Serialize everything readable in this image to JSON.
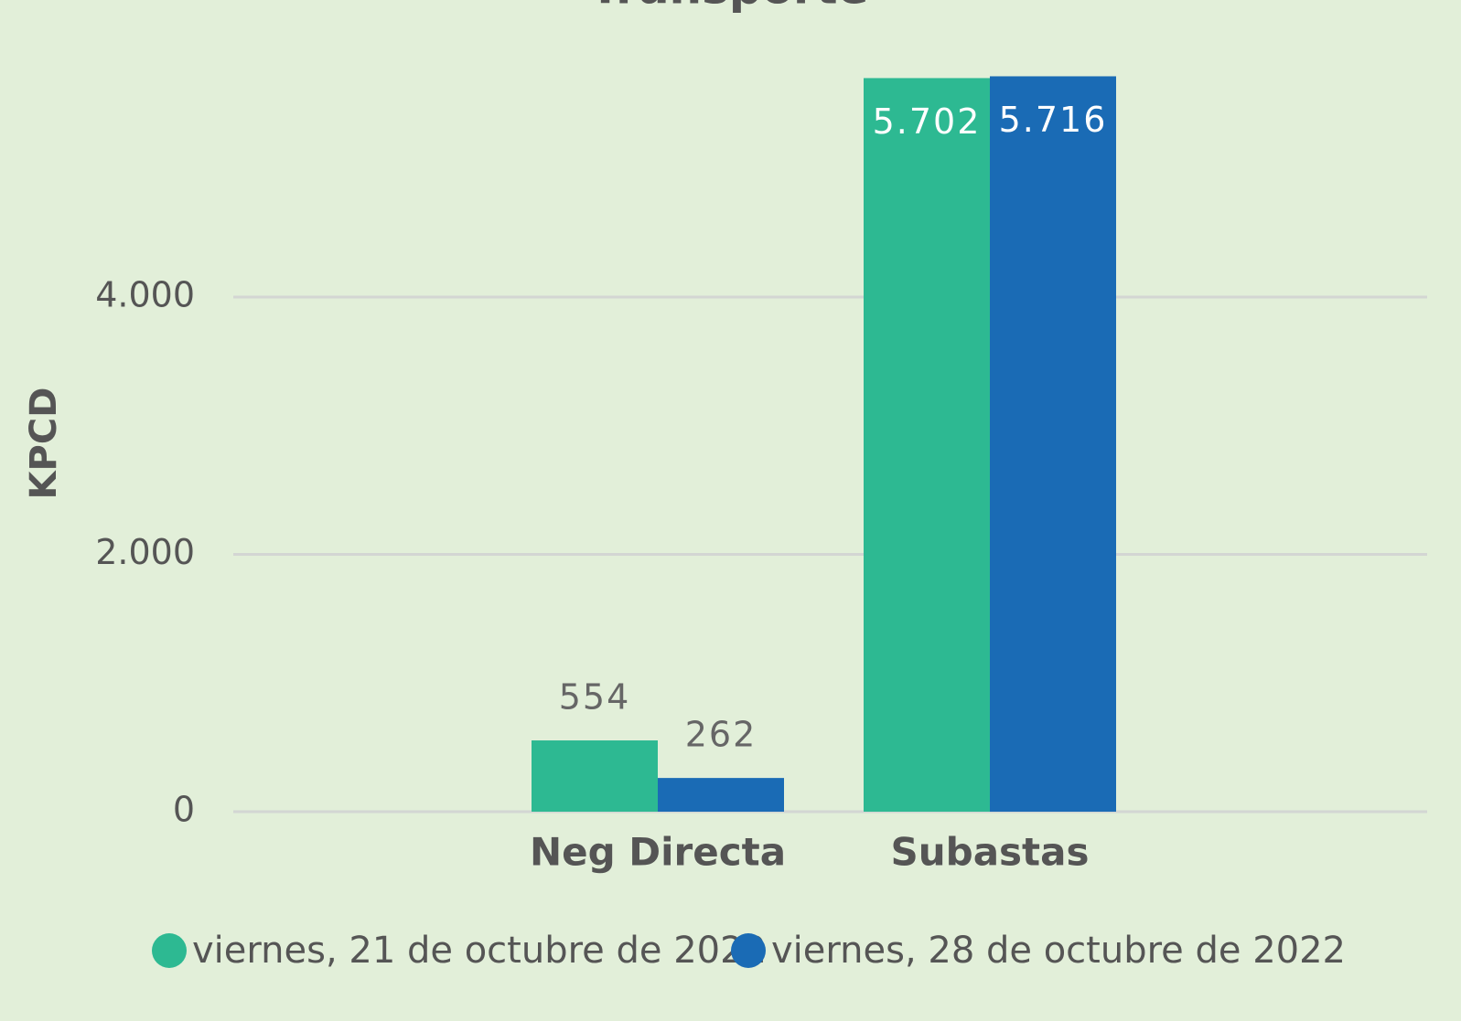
{
  "chart_data": {
    "type": "bar",
    "title": "Transporte",
    "y_label": "KPCD",
    "categories": [
      "Neg Directa",
      "Subastas"
    ],
    "series": [
      {
        "name": "viernes, 21 de octubre de 2022",
        "color": "#2db992",
        "values": [
          554,
          5702
        ],
        "value_labels": [
          "554",
          "5.702"
        ]
      },
      {
        "name": "viernes, 28 de octubre de 2022",
        "color": "#1a6bb5",
        "values": [
          262,
          5716
        ],
        "value_labels": [
          "262",
          "5.716"
        ]
      }
    ],
    "ylim": [
      0,
      6000
    ],
    "yticks": [
      0,
      {
        "value": 2000,
        "label": "2.000"
      },
      {
        "value": 4000,
        "label": "4.000"
      }
    ],
    "grid": true,
    "legend": "bottom"
  }
}
